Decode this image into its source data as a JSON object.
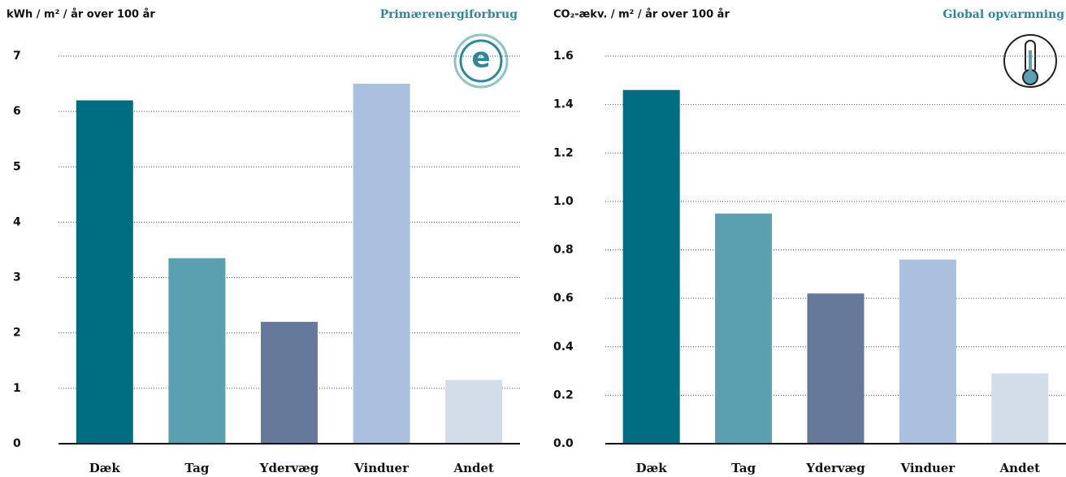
{
  "chart_data": [
    {
      "type": "bar",
      "title": "kWh / m² / år over 100 år",
      "subtitle": "Primærenergiforbrug",
      "badge": "e",
      "categories": [
        "Dæk",
        "Tag",
        "Ydervæg",
        "Vinduer",
        "Andet"
      ],
      "values": [
        6.2,
        3.35,
        2.2,
        6.5,
        1.15
      ],
      "colors": [
        "#006e82",
        "#5aa0b0",
        "#657a9a",
        "#a9c0de",
        "#d2dde9"
      ],
      "ylim": [
        0,
        7
      ],
      "yticks": [
        0,
        1,
        2,
        3,
        4,
        5,
        6,
        7
      ],
      "grid": true
    },
    {
      "type": "bar",
      "title": "CO₂-ækv. / m² / år over 100 år",
      "subtitle": "Global opvarmning",
      "categories": [
        "Dæk",
        "Tag",
        "Ydervæg",
        "Vinduer",
        "Andet"
      ],
      "values": [
        1.46,
        0.95,
        0.62,
        0.76,
        0.29
      ],
      "colors": [
        "#006e82",
        "#5aa0b0",
        "#657a9a",
        "#a9c0de",
        "#d2dde9"
      ],
      "ylim": [
        0,
        1.6
      ],
      "yticks": [
        {
          "value": 0,
          "label": "0.0"
        },
        0.2,
        0.4,
        0.6,
        0.8,
        {
          "value": 1,
          "label": "1.0"
        },
        1.2,
        1.4,
        1.6
      ],
      "grid": true
    }
  ]
}
